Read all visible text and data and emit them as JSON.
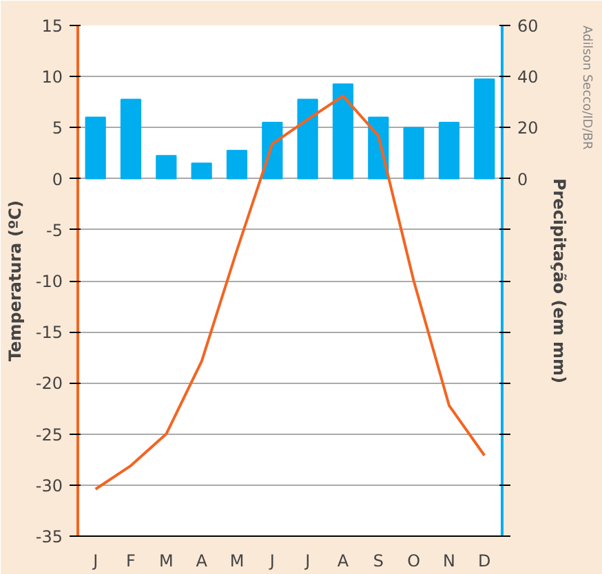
{
  "chart_data": {
    "type": "bar",
    "ylabel": "Temperatura (ºC)",
    "y2label": "Precipitação (em mm)",
    "categories": [
      "J",
      "F",
      "M",
      "A",
      "M",
      "J",
      "J",
      "A",
      "S",
      "O",
      "N",
      "D"
    ],
    "series": [
      {
        "axis": "y2",
        "color": "#00adef",
        "values": [
          24,
          31,
          9,
          6,
          11,
          22,
          31,
          37,
          24,
          20,
          22,
          39
        ]
      },
      {
        "type": "line",
        "axis": "y",
        "color": "#f26522",
        "values": [
          -30.4,
          -28.1,
          -25.0,
          -17.9,
          -7,
          3.4,
          5.8,
          8.1,
          4.2,
          -10,
          -22.2,
          -27.1
        ]
      }
    ],
    "ylim": [
      -35,
      15
    ],
    "yticks": [
      -35,
      -30,
      -25,
      -20,
      -15,
      -10,
      -5,
      0,
      5,
      10,
      15
    ],
    "y2lim": [
      -140,
      60
    ],
    "y2ticks": [
      {
        "value": -140,
        "label": null
      },
      {
        "value": -120,
        "label": null
      },
      {
        "value": -100,
        "label": null
      },
      {
        "value": -80,
        "label": null
      },
      {
        "value": -60,
        "label": null
      },
      {
        "value": -40,
        "label": null
      },
      {
        "value": -20,
        "label": null
      },
      0,
      20,
      40,
      60
    ],
    "grid": "y",
    "marker": "none",
    "line_style": "solid",
    "annotations": [
      "Adilson Secco/ID/BR"
    ]
  }
}
